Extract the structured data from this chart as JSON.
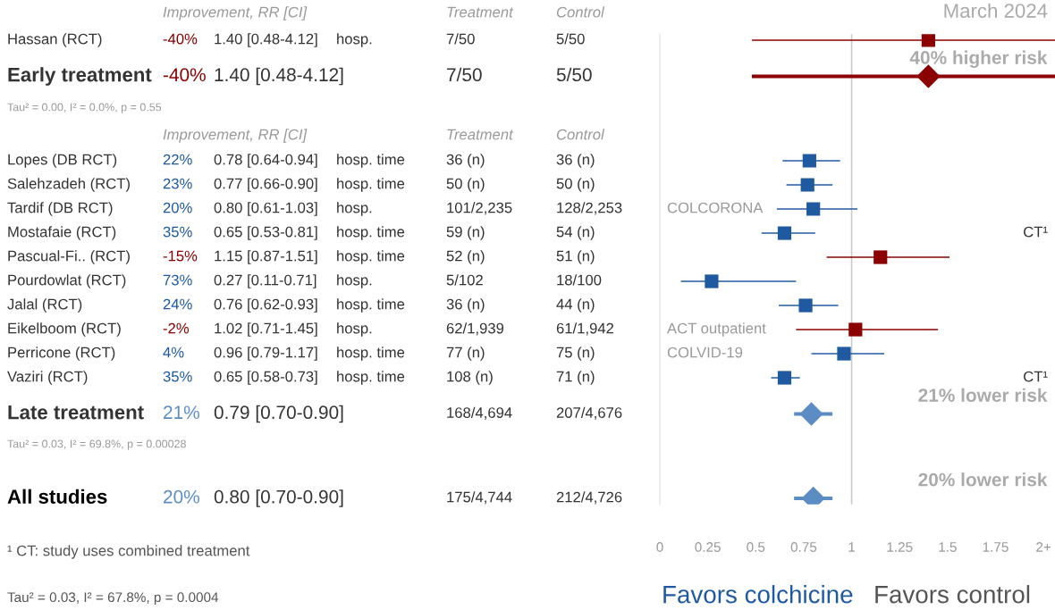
{
  "chart_data": [
    {
      "type": "other",
      "categories": [
        "Improvement, RR [CI]",
        null,
        null,
        "Treatment",
        "Control",
        null,
        null
      ],
      "y_categories": [
        "Hassan (RCT)",
        "Early treatment",
        "Lopes (DB RCT)",
        "Salehzadeh (RCT)",
        "Tardif (DB RCT)",
        "Mostafaie (RCT)",
        "Pascual-Fi.. (RCT)",
        "Pourdowlat (RCT)",
        "Jalal (RCT)",
        "Eikelboom (RCT)",
        "Perricone (RCT)",
        "Vaziri (RCT)",
        "Late treatment",
        "All studies"
      ],
      "cell_labels": [
        [
          "-40%",
          "1.40 [0.48-4.12]",
          "hosp.",
          "7/50",
          "5/50",
          null,
          null
        ],
        [
          "-40%",
          "1.40 [0.48-4.12]",
          null,
          "7/50",
          "5/50",
          null,
          null
        ],
        [
          "22%",
          "0.78 [0.64-0.94]",
          "hosp. time",
          "36 (n)",
          "36 (n)",
          null,
          null
        ],
        [
          "23%",
          "0.77 [0.66-0.90]",
          "hosp. time",
          "50 (n)",
          "50 (n)",
          null,
          null
        ],
        [
          "20%",
          "0.80 [0.61-1.03]",
          "hosp.",
          "101/2,235",
          "128/2,253",
          "COLCORONA",
          null
        ],
        [
          "35%",
          "0.65 [0.53-0.81]",
          "hosp. time",
          "59 (n)",
          "54 (n)",
          null,
          "CT¹"
        ],
        [
          "-15%",
          "1.15 [0.87-1.51]",
          "hosp. time",
          "52 (n)",
          "51 (n)",
          null,
          null
        ],
        [
          "73%",
          "0.27 [0.11-0.71]",
          "hosp.",
          "5/102",
          "18/100",
          null,
          null
        ],
        [
          "24%",
          "0.76 [0.62-0.93]",
          "hosp. time",
          "36 (n)",
          "44 (n)",
          null,
          null
        ],
        [
          "-2%",
          "1.02 [0.71-1.45]",
          "hosp.",
          "62/1,939",
          "61/1,942",
          "ACT outpatient",
          null
        ],
        [
          "4%",
          "0.96 [0.79-1.17]",
          "hosp. time",
          "77 (n)",
          "75 (n)",
          "COLVID-19",
          null
        ],
        [
          "35%",
          "0.65 [0.58-0.73]",
          "hosp. time",
          "108 (n)",
          "71 (n)",
          null,
          "CT¹"
        ],
        [
          "21%",
          "0.79 [0.70-0.90]",
          null,
          "168/4,694",
          "207/4,676",
          null,
          null
        ],
        [
          "20%",
          "0.80 [0.70-0.90]",
          null,
          "175/4,744",
          "212/4,726",
          null,
          null
        ]
      ],
      "annotations": [
        "Tau² = 0.00, I² = 0.0%, p = 0.55",
        "Tau² = 0.03, I² = 69.8%, p = 0.00028",
        "¹ CT: study uses combined treatment",
        "Tau² = 0.03, I² = 67.8%, p = 0.0004",
        "Favors colchicine",
        "Favors control",
        "March 2024"
      ]
    },
    {
      "type": "scatter",
      "orientation": "horizontal",
      "categories": [
        null,
        null,
        null,
        null,
        null,
        null,
        null,
        null,
        null,
        null,
        null,
        null,
        null,
        null,
        null,
        null,
        null,
        null,
        null,
        null,
        null,
        null,
        null,
        null,
        null,
        null,
        null,
        null,
        null,
        null,
        null,
        null,
        null,
        null,
        null,
        null,
        null,
        null,
        null
      ],
      "series": [
        {
          "type": "scatter",
          "marker": "square",
          "values": [
            1.4,
            null,
            null,
            null,
            null,
            null,
            null,
            null,
            null,
            null,
            0.78,
            null,
            0.77,
            null,
            0.8,
            null,
            0.65,
            null,
            1.15,
            null,
            0.27,
            null,
            0.76,
            null,
            1.02,
            null,
            0.96,
            null,
            0.65,
            null,
            null,
            null,
            null,
            null,
            null,
            null,
            null,
            null,
            null
          ],
          "errors": [
            [
              0.48,
              2.06
            ],
            null,
            null,
            null,
            null,
            null,
            null,
            null,
            null,
            null,
            [
              0.64,
              0.94
            ],
            null,
            [
              0.66,
              0.9
            ],
            null,
            [
              0.61,
              1.03
            ],
            null,
            [
              0.53,
              0.81
            ],
            null,
            [
              0.87,
              1.51
            ],
            null,
            [
              0.11,
              0.71
            ],
            null,
            [
              0.62,
              0.93
            ],
            null,
            [
              0.71,
              1.45
            ],
            null,
            [
              0.79,
              1.17
            ],
            null,
            [
              0.58,
              0.73
            ],
            null,
            null,
            null,
            null,
            null,
            null,
            null,
            null,
            null,
            null
          ],
          "colors": [
            "#8b0000",
            null,
            null,
            null,
            null,
            null,
            null,
            null,
            null,
            null,
            "#1f5aa0",
            null,
            "#1f5aa0",
            null,
            "#1f5aa0",
            null,
            "#1f5aa0",
            null,
            "#8b0000",
            null,
            "#1f5aa0",
            null,
            "#1f5aa0",
            null,
            "#8b0000",
            null,
            "#1f5aa0",
            null,
            "#1f5aa0",
            null,
            null,
            null,
            null,
            null,
            null,
            null,
            null,
            null,
            null
          ]
        },
        {
          "type": "scatter",
          "marker": "diamond",
          "values": [
            null,
            null,
            null,
            1.4,
            null,
            null,
            null,
            null,
            null,
            null,
            null,
            null,
            null,
            null,
            null,
            null,
            null,
            null,
            null,
            null,
            null,
            null,
            null,
            null,
            null,
            null,
            null,
            null,
            null,
            null,
            null,
            0.79,
            null,
            null,
            null,
            null,
            null,
            null,
            0.8
          ],
          "errors": [
            null,
            null,
            null,
            [
              0.48,
              2.06
            ],
            null,
            null,
            null,
            null,
            null,
            null,
            null,
            null,
            null,
            null,
            null,
            null,
            null,
            null,
            null,
            null,
            null,
            null,
            null,
            null,
            null,
            null,
            null,
            null,
            null,
            null,
            null,
            [
              0.7,
              0.9
            ],
            null,
            null,
            null,
            null,
            null,
            null,
            [
              0.7,
              0.9
            ]
          ],
          "colors": [
            null,
            null,
            null,
            "#8b0000",
            null,
            null,
            null,
            null,
            null,
            null,
            null,
            null,
            null,
            null,
            null,
            null,
            null,
            null,
            null,
            null,
            null,
            null,
            null,
            null,
            null,
            null,
            null,
            null,
            null,
            null,
            null,
            "#5b8cc4",
            null,
            null,
            null,
            null,
            null,
            null,
            "#5b8cc4"
          ]
        }
      ],
      "xlim": [
        0,
        2.06
      ],
      "xticks": [
        0,
        0.25,
        0.5,
        0.75,
        1,
        1.25,
        1.5,
        1.75,
        {
          "value": 2,
          "label": "2+"
        }
      ],
      "ref_lines": [
        {
          "axis": "x",
          "value": 1,
          "color": "#cccccc"
        }
      ],
      "grid": false,
      "annotations": [
        "40% higher risk",
        "21% lower risk",
        "20% lower risk"
      ]
    }
  ]
}
